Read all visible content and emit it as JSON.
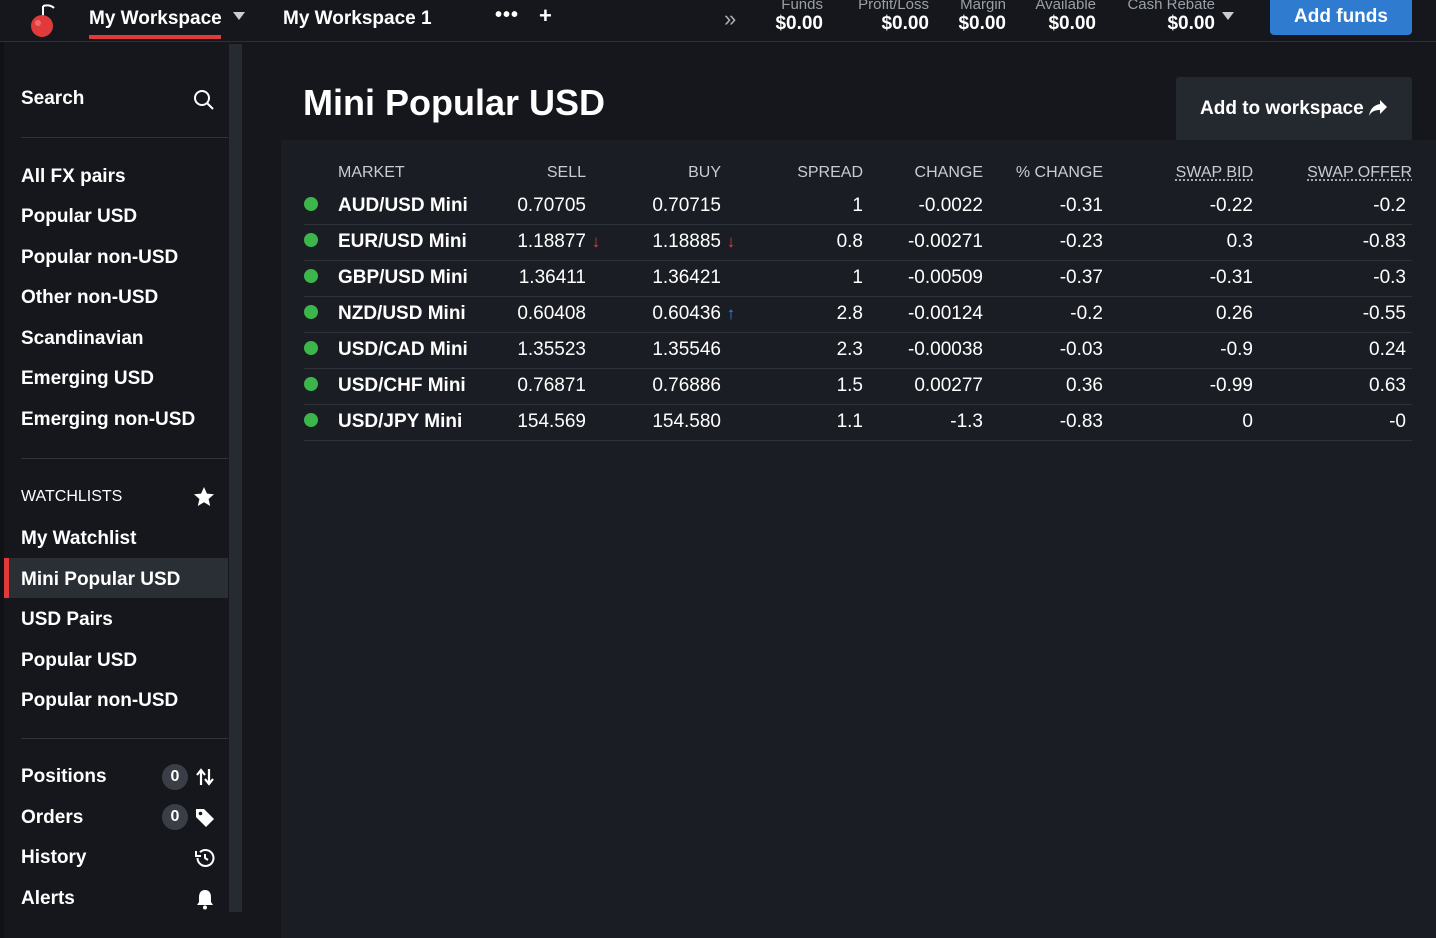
{
  "topbar": {
    "workspace_tabs": [
      "My Workspace",
      "My Workspace 1"
    ],
    "stats": [
      {
        "label": "Funds",
        "value": "$0.00"
      },
      {
        "label": "Profit/Loss",
        "value": "$0.00"
      },
      {
        "label": "Margin",
        "value": "$0.00"
      },
      {
        "label": "Available",
        "value": "$0.00"
      },
      {
        "label": "Cash Rebate",
        "value": "$0.00"
      }
    ],
    "add_funds_label": "Add funds",
    "more_glyph": "•••",
    "plus_glyph": "+",
    "chevron_glyph": "»",
    "close_glyph": "×"
  },
  "sidebar": {
    "search_label": "Search",
    "categories": [
      "All FX pairs",
      "Popular USD",
      "Popular non-USD",
      "Other non-USD",
      "Scandinavian",
      "Emerging USD",
      "Emerging non-USD"
    ],
    "watchlists_heading": "WATCHLISTS",
    "watchlists": [
      "My Watchlist",
      "Mini Popular USD",
      "USD Pairs",
      "Popular USD",
      "Popular non-USD"
    ],
    "active_watchlist": "Mini Popular USD",
    "bottom": [
      {
        "label": "Positions",
        "badge": "0",
        "icon": "swap-arrows-icon"
      },
      {
        "label": "Orders",
        "badge": "0",
        "icon": "tag-icon"
      },
      {
        "label": "History",
        "icon": "history-icon"
      },
      {
        "label": "Alerts",
        "icon": "bell-icon"
      }
    ]
  },
  "main": {
    "title": "Mini Popular USD",
    "add_to_workspace_label": "Add to workspace",
    "columns": [
      "MARKET",
      "SELL",
      "BUY",
      "SPREAD",
      "CHANGE",
      "% CHANGE",
      "SWAP BID",
      "SWAP OFFER"
    ],
    "rows": [
      {
        "market": "AUD/USD Mini",
        "sell": "0.70705",
        "sell_arrow": "",
        "buy": "0.70715",
        "buy_arrow": "",
        "spread": "1",
        "change": "-0.0022",
        "pct_change": "-0.31",
        "swap_bid": "-0.22",
        "swap_offer": "-0.2"
      },
      {
        "market": "EUR/USD Mini",
        "sell": "1.18877",
        "sell_arrow": "↓",
        "buy": "1.18885",
        "buy_arrow": "↓",
        "spread": "0.8",
        "change": "-0.00271",
        "pct_change": "-0.23",
        "swap_bid": "0.3",
        "swap_offer": "-0.83"
      },
      {
        "market": "GBP/USD Mini",
        "sell": "1.36411",
        "sell_arrow": "",
        "buy": "1.36421",
        "buy_arrow": "",
        "spread": "1",
        "change": "-0.00509",
        "pct_change": "-0.37",
        "swap_bid": "-0.31",
        "swap_offer": "-0.3"
      },
      {
        "market": "NZD/USD Mini",
        "sell": "0.60408",
        "sell_arrow": "",
        "buy": "0.60436",
        "buy_arrow": "↑",
        "spread": "2.8",
        "change": "-0.00124",
        "pct_change": "-0.2",
        "swap_bid": "0.26",
        "swap_offer": "-0.55"
      },
      {
        "market": "USD/CAD Mini",
        "sell": "1.35523",
        "sell_arrow": "",
        "buy": "1.35546",
        "buy_arrow": "",
        "spread": "2.3",
        "change": "-0.00038",
        "pct_change": "-0.03",
        "swap_bid": "-0.9",
        "swap_offer": "0.24"
      },
      {
        "market": "USD/CHF Mini",
        "sell": "0.76871",
        "sell_arrow": "",
        "buy": "0.76886",
        "buy_arrow": "",
        "spread": "1.5",
        "change": "0.00277",
        "pct_change": "0.36",
        "swap_bid": "-0.99",
        "swap_offer": "0.63"
      },
      {
        "market": "USD/JPY Mini",
        "sell": "154.569",
        "sell_arrow": "",
        "buy": "154.580",
        "buy_arrow": "",
        "spread": "1.1",
        "change": "-1.3",
        "pct_change": "-0.83",
        "swap_bid": "0",
        "swap_offer": "-0"
      }
    ]
  },
  "colors": {
    "accent_red": "#e03a3a",
    "negative": "#e53b3b",
    "positive": "#3b82f6",
    "status_green": "#3cb54a",
    "button_blue": "#2f7bd0"
  }
}
